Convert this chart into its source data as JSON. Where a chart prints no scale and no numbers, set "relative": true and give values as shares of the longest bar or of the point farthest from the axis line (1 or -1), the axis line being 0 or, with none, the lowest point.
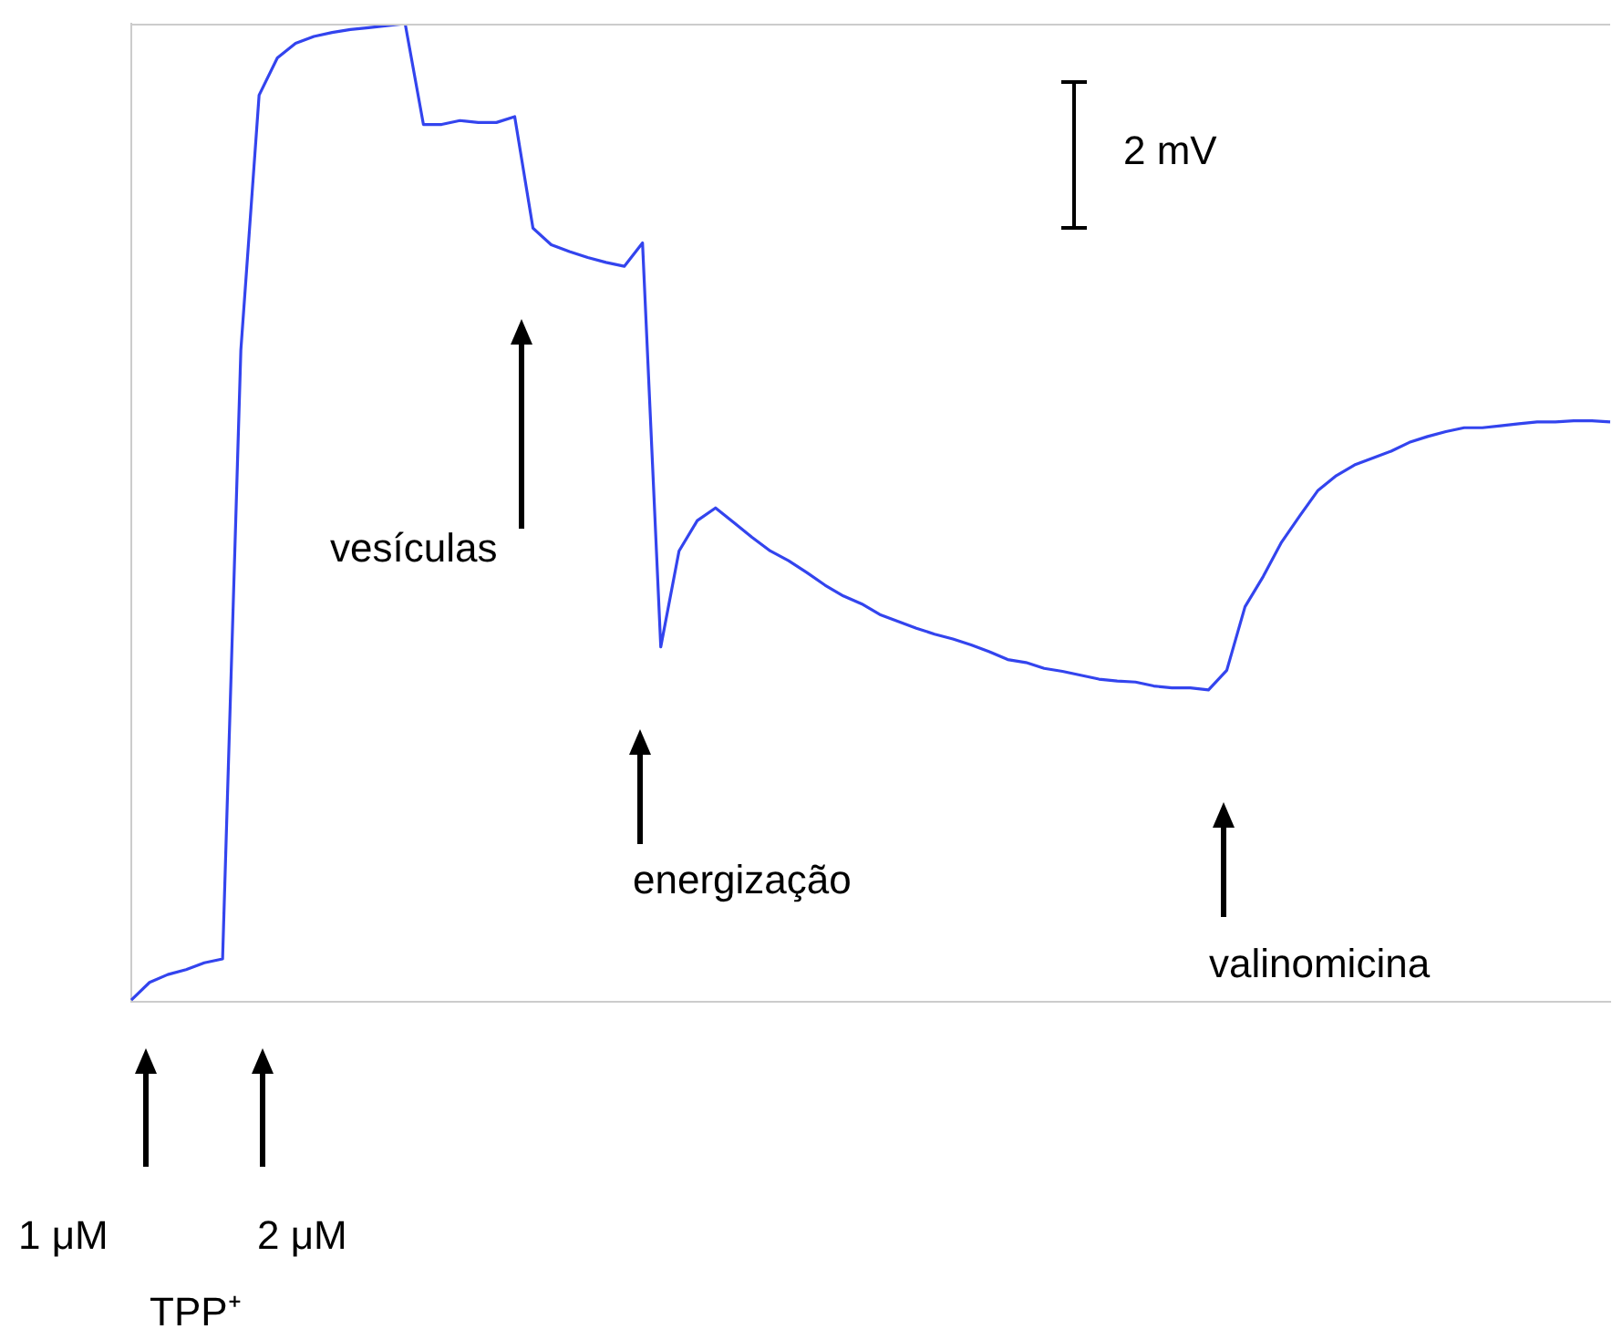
{
  "chart_data": {
    "type": "line",
    "relative": true,
    "grid": false,
    "legend": false,
    "marker": "none",
    "line_style": "solid",
    "categories": [
      null,
      null,
      null,
      null,
      null,
      null,
      null,
      null,
      null,
      null,
      null,
      null,
      null,
      null,
      null,
      null,
      null,
      null,
      null,
      null,
      null,
      null,
      null,
      null,
      null,
      null,
      null,
      null,
      null,
      null,
      null,
      null,
      null,
      null,
      null,
      null,
      null,
      null,
      null,
      null,
      null,
      null,
      null,
      null,
      null,
      null,
      null,
      null,
      null,
      null,
      null,
      null,
      null,
      null,
      null,
      null,
      null,
      null,
      null,
      null,
      null,
      null,
      null,
      null,
      null,
      null,
      null,
      null,
      null,
      null,
      null,
      null,
      null,
      null,
      null,
      null,
      null,
      null,
      null,
      null,
      null,
      null
    ],
    "series": [
      {
        "color": "#3344ee",
        "values": [
          0.002,
          0.02,
          0.028,
          0.033,
          0.04,
          0.044,
          0.666,
          0.927,
          0.965,
          0.98,
          0.987,
          0.991,
          0.994,
          0.996,
          0.998,
          1.0,
          0.897,
          0.897,
          0.901,
          0.899,
          0.899,
          0.905,
          0.791,
          0.774,
          0.767,
          0.761,
          0.756,
          0.752,
          0.776,
          0.363,
          0.461,
          0.492,
          0.505,
          0.49,
          0.475,
          0.461,
          0.451,
          0.439,
          0.426,
          0.415,
          0.407,
          0.396,
          0.389,
          0.382,
          0.376,
          0.371,
          0.365,
          0.358,
          0.35,
          0.347,
          0.341,
          0.338,
          0.334,
          0.33,
          0.328,
          0.327,
          0.323,
          0.321,
          0.321,
          0.319,
          0.339,
          0.404,
          0.435,
          0.47,
          0.497,
          0.523,
          0.538,
          0.549,
          0.556,
          0.563,
          0.572,
          0.578,
          0.583,
          0.587,
          0.587,
          0.589,
          0.591,
          0.593,
          0.593,
          0.594,
          0.594,
          0.593
        ]
      }
    ],
    "annotations": [
      "2 mV",
      "vesículas",
      "energização",
      "valinomicina",
      "1 μM",
      "2 μM",
      "TPP⁺"
    ]
  }
}
